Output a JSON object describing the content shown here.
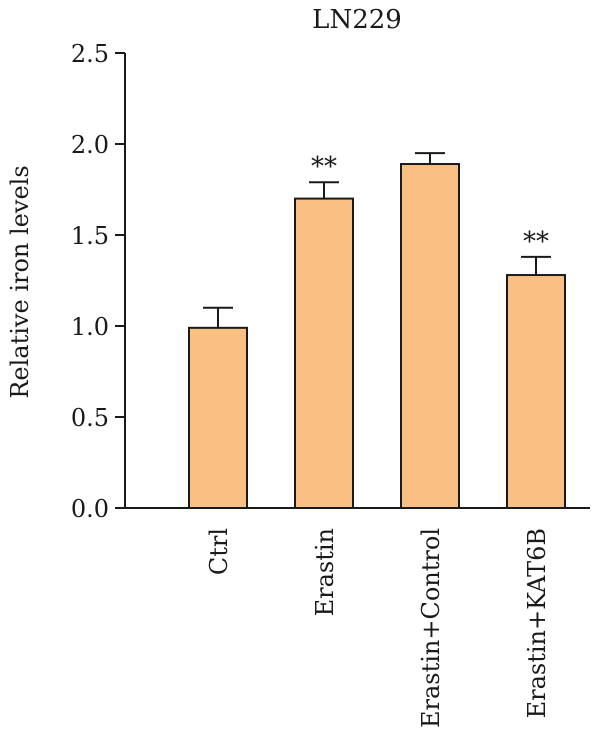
{
  "chart_data": {
    "type": "bar",
    "title": "LN229",
    "xlabel": "",
    "ylabel": "Relative iron levels",
    "ylim": [
      0,
      2.5
    ],
    "yticks": [
      "0.0",
      "0.5",
      "1.0",
      "1.5",
      "2.0",
      "2.5"
    ],
    "categories": [
      "Ctrl",
      "Erastin",
      "Erastin+Control",
      "Erastin+KAT6B"
    ],
    "values": [
      0.99,
      1.7,
      1.89,
      1.28
    ],
    "errors": [
      0.11,
      0.09,
      0.06,
      0.1
    ],
    "annotations": [
      "",
      "**",
      "",
      "**"
    ],
    "bar_color": "#f9bf83",
    "grid": false,
    "legend": "none"
  }
}
